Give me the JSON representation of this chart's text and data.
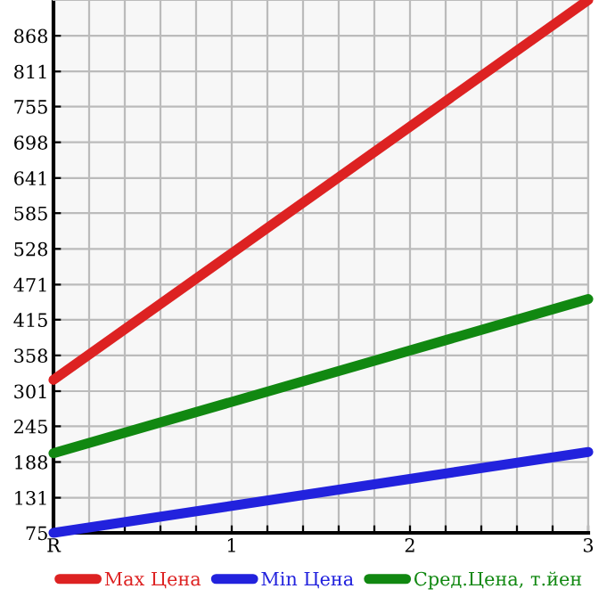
{
  "chart_data": {
    "type": "line",
    "x": [
      0,
      3
    ],
    "series": [
      {
        "name": "Max Цена",
        "color": "#dd2222",
        "values": [
          319,
          925
        ]
      },
      {
        "name": "Min Цена",
        "color": "#2222dd",
        "values": [
          75,
          204
        ]
      },
      {
        "name": "Сред.Цена, т.йен",
        "color": "#118811",
        "values": [
          202,
          448
        ]
      }
    ],
    "xlim": [
      0,
      3
    ],
    "xticks": [
      {
        "value": 0,
        "label": "R"
      },
      {
        "value": 0.2,
        "label": null
      },
      {
        "value": 0.4,
        "label": null
      },
      {
        "value": 0.6,
        "label": null
      },
      {
        "value": 0.8,
        "label": null
      },
      {
        "value": 1,
        "label": "1"
      },
      {
        "value": 1.2,
        "label": null
      },
      {
        "value": 1.4,
        "label": null
      },
      {
        "value": 1.6,
        "label": null
      },
      {
        "value": 1.8,
        "label": null
      },
      {
        "value": 2,
        "label": "2"
      },
      {
        "value": 2.2,
        "label": null
      },
      {
        "value": 2.4,
        "label": null
      },
      {
        "value": 2.6,
        "label": null
      },
      {
        "value": 2.8,
        "label": null
      },
      {
        "value": 3,
        "label": "3"
      }
    ],
    "ylim": [
      75,
      925
    ],
    "yticks": [
      75,
      131,
      188,
      245,
      301,
      358,
      415,
      471,
      528,
      585,
      641,
      698,
      755,
      811,
      868
    ],
    "grid": true,
    "legend": "bottom",
    "marker": "none",
    "line_style": "solid"
  }
}
